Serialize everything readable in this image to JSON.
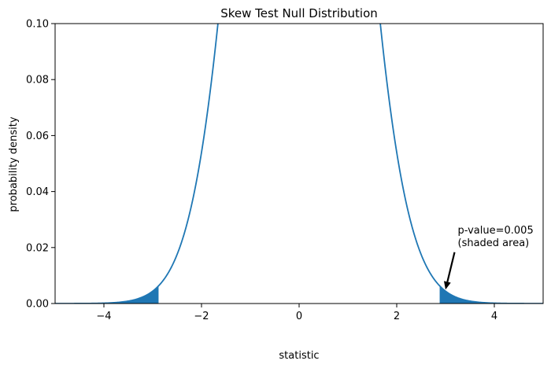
{
  "chart_data": {
    "type": "line",
    "title": "Skew Test Null Distribution",
    "xlabel": "statistic",
    "ylabel": "probability density",
    "xlim": [
      -5,
      5
    ],
    "ylim": [
      0,
      0.1
    ],
    "grid": false,
    "xticks": [
      -4,
      -2,
      0,
      2,
      4
    ],
    "xtick_labels": [
      "−4",
      "−2",
      "0",
      "2",
      "4"
    ],
    "yticks": [
      0,
      0.02,
      0.04,
      0.06,
      0.08,
      0.1
    ],
    "ytick_labels": [
      "0.00",
      "0.02",
      "0.04",
      "0.06",
      "0.08",
      "0.10"
    ],
    "series": [
      {
        "kind": "standard-normal-density",
        "color": "#1f77b4",
        "x_range": [
          -5,
          5
        ]
      }
    ],
    "shaded_regions": [
      {
        "x_from": -5,
        "x_to": -2.88,
        "color": "#1f77b4"
      },
      {
        "x_from": 2.88,
        "x_to": 5,
        "color": "#1f77b4"
      }
    ],
    "annotation": {
      "lines": [
        "p-value=0.005",
        "(shaded area)"
      ],
      "text_x": 3.25,
      "text_y": 0.02,
      "arrow_to_x": 3.0,
      "arrow_to_y": 0.005
    }
  }
}
